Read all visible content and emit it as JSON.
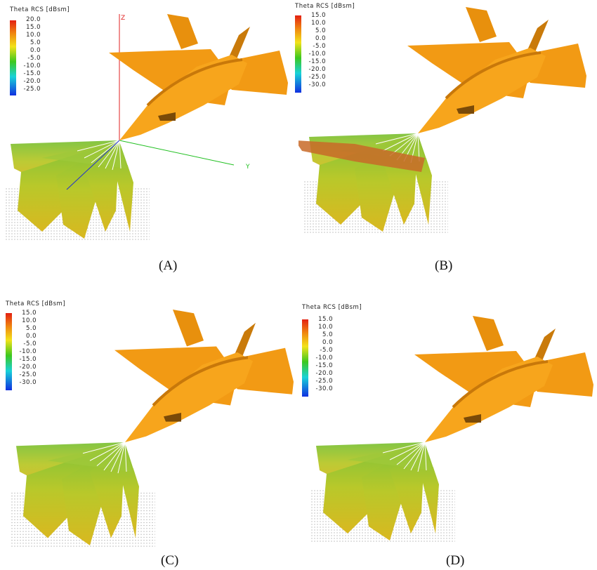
{
  "panels": [
    {
      "id": "A",
      "caption": "(A)",
      "legend": {
        "title": "Theta RCS [dBsm]",
        "ticks": [
          "20.0",
          "15.0",
          "10.0",
          "5.0",
          "0.0",
          "-5.0",
          "-10.0",
          "-15.0",
          "-20.0",
          "-25.0"
        ]
      },
      "axes": {
        "z": "Z",
        "y": "Y"
      }
    },
    {
      "id": "B",
      "caption": "(B)",
      "legend": {
        "title": "Theta RCS [dBsm]",
        "ticks": [
          "15.0",
          "10.0",
          "5.0",
          "0.0",
          "-5.0",
          "-10.0",
          "-15.0",
          "-20.0",
          "-25.0",
          "-30.0"
        ]
      }
    },
    {
      "id": "C",
      "caption": "(C)",
      "legend": {
        "title": "Theta RCS [dBsm]",
        "ticks": [
          "15.0",
          "10.0",
          "5.0",
          "0.0",
          "-5.0",
          "-10.0",
          "-15.0",
          "-20.0",
          "-25.0",
          "-30.0"
        ]
      }
    },
    {
      "id": "D",
      "caption": "(D)",
      "legend": {
        "title": "Theta RCS [dBsm]",
        "ticks": [
          "15.0",
          "10.0",
          "5.0",
          "0.0",
          "-5.0",
          "-10.0",
          "-15.0",
          "-20.0",
          "-25.0",
          "-30.0"
        ]
      }
    }
  ],
  "colors": {
    "aircraft": "#f0960f",
    "colormap": [
      "#e32012",
      "#f08a10",
      "#f2e21a",
      "#3cc81e",
      "#18d2d8",
      "#1030e0"
    ]
  }
}
